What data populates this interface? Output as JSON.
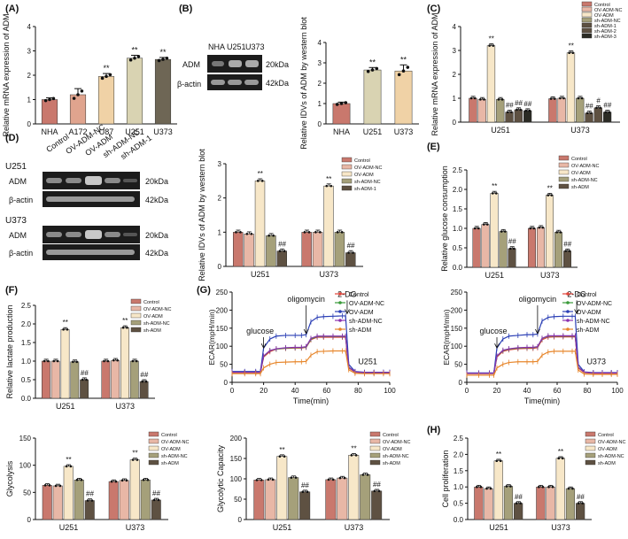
{
  "panel_labels": [
    "(A)",
    "(B)",
    "(C)",
    "(D)",
    "(E)",
    "(F)",
    "(G)",
    "(H)"
  ],
  "colors": {
    "control": "#c9786d",
    "ov_nc": "#e8b7a6",
    "ov_adm": "#f7e7c8",
    "sh_nc": "#a5a07a",
    "sh_adm": "#5e5142",
    "sh_adm1": "#5e5142",
    "sh_adm3": "#2b2b24",
    "g_control": "#e0443a",
    "g_ovnc": "#3a9a3a",
    "g_ovadm": "#2b3fb5",
    "g_shnc": "#8a32b0",
    "g_shadm": "#e7862b",
    "a_nha": "#c9786d",
    "a_a172": "#e0a48e",
    "a_u87": "#f0d2a6",
    "a_u251": "#d9d3b2",
    "a_u373": "#6e6655"
  },
  "panel_b_blot": {
    "lanes": [
      "NHA",
      "U251",
      "U373"
    ],
    "rows": [
      {
        "label": "ADM",
        "size": "20kDa"
      },
      {
        "label": "β-actin",
        "size": "42kDa"
      }
    ]
  },
  "panel_d_blot": {
    "lanes": [
      "Control",
      "OV-ADM-NC",
      "OV-ADM",
      "sh-ADM-NC",
      "sh-ADM-1"
    ],
    "groups": [
      {
        "cell": "U251",
        "rows": [
          {
            "label": "ADM",
            "size": "20kDa"
          },
          {
            "label": "β-actin",
            "size": "42kDa"
          }
        ]
      },
      {
        "cell": "U373",
        "rows": [
          {
            "label": "ADM",
            "size": "20kDa"
          },
          {
            "label": "β-actin",
            "size": "42kDa"
          }
        ]
      }
    ]
  },
  "chart_data": [
    {
      "id": "A",
      "type": "bar",
      "categories": [
        "NHA",
        "A172",
        "U87",
        "U251",
        "U373"
      ],
      "values": [
        1.0,
        1.2,
        1.95,
        2.7,
        2.65
      ],
      "errors": [
        0.07,
        0.25,
        0.12,
        0.12,
        0.08
      ],
      "sig": [
        "",
        "",
        "**",
        "**",
        "**"
      ],
      "ylabel": "Relative mRNA expression of ADM",
      "ylim": [
        0,
        4
      ],
      "yticks": [
        0,
        1,
        2,
        3,
        4
      ]
    },
    {
      "id": "B",
      "type": "bar",
      "categories": [
        "NHA",
        "U251",
        "U373"
      ],
      "values": [
        1.0,
        2.65,
        2.6
      ],
      "errors": [
        0.07,
        0.12,
        0.3
      ],
      "sig": [
        "",
        "**",
        "**"
      ],
      "ylabel": "Relative IDVs of ADM by western blot",
      "ylim": [
        0,
        4
      ],
      "yticks": [
        0,
        1,
        2,
        3,
        4
      ]
    },
    {
      "id": "C",
      "type": "bar",
      "groups": [
        "U251",
        "U373"
      ],
      "series": [
        "Control",
        "OV-ADM-NC",
        "OV-ADM",
        "sh-ADM-NC",
        "sh-ADM-1",
        "sh-ADM-2",
        "sh-ADM-3"
      ],
      "values": [
        [
          1.0,
          0.95,
          3.2,
          0.95,
          0.42,
          0.52,
          0.48
        ],
        [
          0.98,
          1.0,
          2.9,
          1.0,
          0.38,
          0.6,
          0.42
        ]
      ],
      "sig": [
        [
          "",
          "",
          "**",
          "",
          "##",
          "##",
          "##"
        ],
        [
          "",
          "",
          "**",
          "",
          "##",
          "#",
          "##"
        ]
      ],
      "ylabel": "Relative mRNA expression of ADM",
      "ylim": [
        0,
        4
      ],
      "yticks": [
        0,
        1,
        2,
        3,
        4
      ]
    },
    {
      "id": "D",
      "type": "bar",
      "groups": [
        "U251",
        "U373"
      ],
      "series": [
        "Control",
        "OV-ADM-NC",
        "OV-ADM",
        "sh-ADM-NC",
        "sh-ADM-1"
      ],
      "values": [
        [
          1.0,
          0.95,
          2.5,
          0.9,
          0.45
        ],
        [
          1.0,
          1.0,
          2.35,
          1.0,
          0.4
        ]
      ],
      "sig": [
        [
          "",
          "",
          "**",
          "",
          "##"
        ],
        [
          "",
          "",
          "**",
          "",
          "##"
        ]
      ],
      "ylabel": "Relative IDVs of ADM by western blot",
      "ylim": [
        0,
        3
      ],
      "yticks": [
        0,
        1,
        2,
        3
      ]
    },
    {
      "id": "E",
      "type": "bar",
      "groups": [
        "U251",
        "U373"
      ],
      "series": [
        "Control",
        "OV-ADM-NC",
        "OV-ADM",
        "sh-ADM-NC",
        "sh-ADM"
      ],
      "values": [
        [
          1.0,
          1.1,
          1.9,
          0.92,
          0.48
        ],
        [
          1.0,
          1.02,
          1.85,
          0.9,
          0.42
        ]
      ],
      "sig": [
        [
          "",
          "",
          "**",
          "",
          "##"
        ],
        [
          "",
          "",
          "**",
          "",
          "##"
        ]
      ],
      "ylabel": "Relative glucose consumption",
      "ylim": [
        0,
        2.5
      ],
      "yticks": [
        0.0,
        0.5,
        1.0,
        1.5,
        2.0,
        2.5
      ]
    },
    {
      "id": "F",
      "type": "bar",
      "groups": [
        "U251",
        "U373"
      ],
      "series": [
        "Control",
        "OV-ADM-NC",
        "OV-ADM",
        "sh-ADM-NC",
        "sh-ADM"
      ],
      "values": [
        [
          1.0,
          1.0,
          1.85,
          0.98,
          0.5
        ],
        [
          1.0,
          1.02,
          1.9,
          1.0,
          0.45
        ]
      ],
      "sig": [
        [
          "",
          "",
          "**",
          "",
          "##"
        ],
        [
          "",
          "",
          "**",
          "",
          "##"
        ]
      ],
      "ylabel": "Relative lactate production",
      "ylim": [
        0,
        2.5
      ],
      "yticks": [
        0.0,
        0.5,
        1.0,
        1.5,
        2.0,
        2.5
      ]
    },
    {
      "id": "G1",
      "type": "line",
      "subtitle": "U251",
      "x": [
        0,
        8,
        15,
        18,
        20,
        24,
        28,
        34,
        40,
        44,
        47,
        50,
        54,
        58,
        64,
        70,
        72,
        74,
        78,
        84,
        90,
        96,
        100
      ],
      "series": [
        {
          "name": "Control",
          "values": [
            27,
            27,
            27,
            27,
            70,
            85,
            92,
            94,
            95,
            95,
            97,
            118,
            125,
            125,
            125,
            125,
            125,
            40,
            28,
            26,
            26,
            26,
            26
          ]
        },
        {
          "name": "OV-ADM-NC",
          "values": [
            28,
            28,
            28,
            28,
            72,
            88,
            92,
            95,
            96,
            96,
            98,
            120,
            127,
            127,
            127,
            127,
            127,
            42,
            29,
            27,
            27,
            27,
            27
          ]
        },
        {
          "name": "OV-ADM",
          "values": [
            30,
            30,
            30,
            30,
            95,
            120,
            128,
            130,
            130,
            130,
            132,
            168,
            180,
            182,
            183,
            184,
            184,
            50,
            30,
            28,
            28,
            28,
            28
          ]
        },
        {
          "name": "sh-ADM-NC",
          "values": [
            28,
            28,
            28,
            28,
            73,
            88,
            93,
            96,
            97,
            97,
            99,
            122,
            128,
            128,
            128,
            128,
            128,
            42,
            29,
            27,
            27,
            27,
            27
          ]
        },
        {
          "name": "sh-ADM",
          "values": [
            24,
            24,
            24,
            24,
            40,
            50,
            55,
            56,
            57,
            57,
            58,
            75,
            85,
            86,
            87,
            87,
            87,
            35,
            25,
            24,
            24,
            24,
            24
          ]
        }
      ],
      "annotations": [
        "glucose",
        "oligomycin",
        "2-DG"
      ],
      "xlabel": "Time(min)",
      "ylabel": "ECAR(mpH/min)",
      "xlim": [
        0,
        100
      ],
      "ylim": [
        0,
        250
      ],
      "xticks": [
        0,
        20,
        40,
        60,
        80,
        100
      ],
      "yticks": [
        0,
        50,
        100,
        150,
        200,
        250
      ]
    },
    {
      "id": "G2",
      "type": "line",
      "subtitle": "U373",
      "x": [
        0,
        8,
        15,
        18,
        20,
        24,
        28,
        34,
        40,
        44,
        47,
        50,
        54,
        58,
        64,
        70,
        72,
        74,
        78,
        84,
        90,
        96,
        100
      ],
      "series": [
        {
          "name": "Control",
          "values": [
            24,
            24,
            24,
            24,
            70,
            86,
            90,
            93,
            94,
            94,
            96,
            118,
            125,
            126,
            126,
            126,
            126,
            40,
            27,
            25,
            25,
            25,
            25
          ]
        },
        {
          "name": "OV-ADM-NC",
          "values": [
            25,
            25,
            25,
            25,
            72,
            88,
            92,
            95,
            96,
            96,
            98,
            121,
            128,
            128,
            128,
            128,
            128,
            42,
            28,
            26,
            26,
            26,
            26
          ]
        },
        {
          "name": "OV-ADM",
          "values": [
            26,
            26,
            26,
            26,
            95,
            120,
            128,
            130,
            132,
            132,
            134,
            170,
            180,
            182,
            183,
            183,
            183,
            50,
            29,
            27,
            27,
            27,
            27
          ]
        },
        {
          "name": "sh-ADM-NC",
          "values": [
            25,
            25,
            25,
            25,
            73,
            89,
            93,
            96,
            97,
            97,
            99,
            122,
            129,
            129,
            129,
            129,
            129,
            42,
            28,
            26,
            26,
            26,
            26
          ]
        },
        {
          "name": "sh-ADM",
          "values": [
            20,
            20,
            20,
            20,
            40,
            50,
            55,
            57,
            57,
            57,
            58,
            75,
            84,
            86,
            86,
            86,
            86,
            34,
            23,
            22,
            22,
            22,
            22
          ]
        }
      ],
      "annotations": [
        "glucose",
        "oligomycin",
        "2-DG"
      ],
      "xlabel": "Time(min)",
      "ylabel": "ECAR(mpH/min)",
      "xlim": [
        0,
        100
      ],
      "ylim": [
        0,
        250
      ],
      "xticks": [
        0,
        20,
        40,
        60,
        80,
        100
      ],
      "yticks": [
        0,
        50,
        100,
        150,
        200,
        250
      ]
    },
    {
      "id": "Glyco",
      "type": "bar",
      "groups": [
        "U251",
        "U373"
      ],
      "series": [
        "Control",
        "OV-ADM-NC",
        "OV-ADM",
        "sh-ADM-NC",
        "sh-ADM"
      ],
      "values": [
        [
          63,
          62,
          98,
          73,
          35
        ],
        [
          70,
          72,
          110,
          73,
          36
        ]
      ],
      "sig": [
        [
          "",
          "",
          "**",
          "",
          "##"
        ],
        [
          "",
          "",
          "**",
          "",
          "##"
        ]
      ],
      "ylabel": "Glycolysis",
      "ylim": [
        0,
        150
      ],
      "yticks": [
        0,
        50,
        100,
        150
      ]
    },
    {
      "id": "Cap",
      "type": "bar",
      "groups": [
        "U251",
        "U373"
      ],
      "series": [
        "Control",
        "OV-ADM-NC",
        "OV-ADM",
        "sh-ADM-NC",
        "sh-ADM"
      ],
      "values": [
        [
          97,
          98,
          155,
          103,
          68
        ],
        [
          98,
          102,
          158,
          110,
          70
        ]
      ],
      "sig": [
        [
          "",
          "",
          "**",
          "",
          "##"
        ],
        [
          "",
          "",
          "**",
          "",
          "##"
        ]
      ],
      "ylabel": "Glycolytic Capacity",
      "ylim": [
        0,
        200
      ],
      "yticks": [
        0,
        50,
        100,
        150,
        200
      ]
    },
    {
      "id": "H",
      "type": "bar",
      "groups": [
        "U251",
        "U373"
      ],
      "series": [
        "Control",
        "OV-ADM-NC",
        "OV-ADM",
        "sh-ADM-NC",
        "sh-ADM"
      ],
      "values": [
        [
          1.0,
          0.95,
          1.8,
          1.02,
          0.5
        ],
        [
          1.0,
          1.0,
          1.88,
          0.95,
          0.5
        ]
      ],
      "sig": [
        [
          "",
          "",
          "**",
          "",
          "##"
        ],
        [
          "",
          "",
          "**",
          "",
          "##"
        ]
      ],
      "ylabel": "Cell proliferation",
      "ylim": [
        0,
        2.5
      ],
      "yticks": [
        0.0,
        0.5,
        1.0,
        1.5,
        2.0,
        2.5
      ]
    }
  ]
}
